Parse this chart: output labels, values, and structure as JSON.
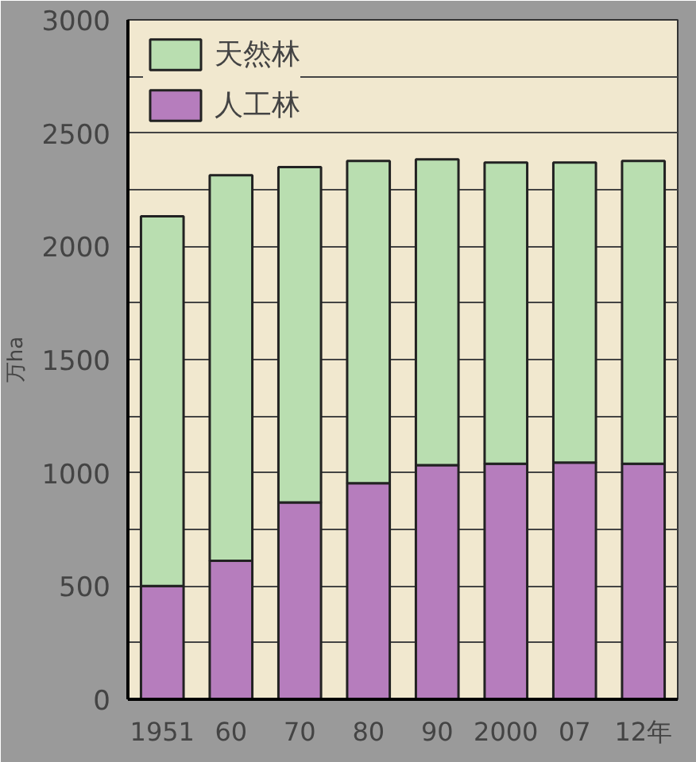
{
  "chart_data": {
    "type": "bar",
    "stacked": true,
    "ylabel": "万ha",
    "categories": [
      "1951",
      "60",
      "70",
      "80",
      "90",
      "2000",
      "07",
      "12年"
    ],
    "series": [
      {
        "name": "人工林",
        "color": "#b67dbd",
        "values": [
          500,
          612,
          869,
          954,
          1034,
          1040,
          1045,
          1040
        ]
      },
      {
        "name": "天然林",
        "color": "#b9deb0",
        "values": [
          1633,
          1702,
          1481,
          1423,
          1350,
          1330,
          1325,
          1337
        ]
      }
    ],
    "ylim": [
      0,
      3000
    ],
    "yticks": [
      0,
      {
        "value": 250,
        "label": null
      },
      500,
      {
        "value": 750,
        "label": null
      },
      1000,
      {
        "value": 1250,
        "label": null
      },
      1500,
      {
        "value": 1750,
        "label": null
      },
      2000,
      {
        "value": 2250,
        "label": null
      },
      2500,
      {
        "value": 2750,
        "label": null
      },
      3000
    ],
    "grid": "y",
    "legend": "top left"
  }
}
